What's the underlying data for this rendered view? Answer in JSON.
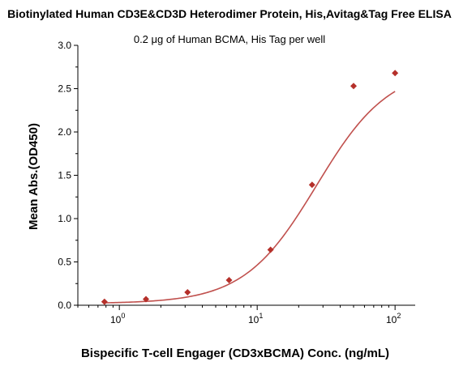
{
  "chart_data": {
    "type": "scatter",
    "title": "Biotinylated Human CD3E&CD3D Heterodimer Protein, His,Avitag&Tag Free ELISA",
    "subtitle": "0.2 μg of Human BCMA, His Tag per well",
    "xlabel": "Bispecific T-cell Engager (CD3xBCMA) Conc. (ng/mL)",
    "ylabel": "Mean Abs.(OD450)",
    "x_scale": "log",
    "xlim": [
      0.5,
      140
    ],
    "ylim": [
      0,
      3.0
    ],
    "y_ticks": [
      0.0,
      0.5,
      1.0,
      1.5,
      2.0,
      2.5,
      3.0
    ],
    "y_tick_labels": [
      "0.0",
      "0.5",
      "1.0",
      "1.5",
      "2.0",
      "2.5",
      "3.0"
    ],
    "x_major_ticks": [
      1,
      10,
      100
    ],
    "x_tick_labels": [
      {
        "base": "10",
        "exp": "0"
      },
      {
        "base": "10",
        "exp": "1"
      },
      {
        "base": "10",
        "exp": "2"
      }
    ],
    "grid": false,
    "series": [
      {
        "color": "#b5302a",
        "x": [
          0.78,
          1.56,
          3.125,
          6.25,
          12.5,
          25,
          50,
          100
        ],
        "y": [
          0.04,
          0.07,
          0.15,
          0.29,
          0.64,
          1.39,
          2.53,
          2.68
        ]
      }
    ],
    "fit_curve": {
      "model": "4PL",
      "bottom": 0.02,
      "top": 2.75,
      "ec50": 27,
      "hill": 1.65,
      "color": "#c0504d"
    }
  }
}
